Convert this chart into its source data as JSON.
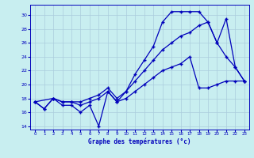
{
  "title": "Graphe des températures (°c)",
  "bg_color": "#c8eef0",
  "grid_color": "#aaccdd",
  "line_color": "#0000bb",
  "xlim": [
    -0.5,
    23.5
  ],
  "ylim": [
    13.5,
    31.5
  ],
  "yticks": [
    14,
    16,
    18,
    20,
    22,
    24,
    26,
    28,
    30
  ],
  "xticks": [
    0,
    1,
    2,
    3,
    4,
    5,
    6,
    7,
    8,
    9,
    10,
    11,
    12,
    13,
    14,
    15,
    16,
    17,
    18,
    19,
    20,
    21,
    22,
    23
  ],
  "series1_x": [
    0,
    1,
    2,
    3,
    4,
    5,
    6,
    7,
    8,
    9,
    10,
    11,
    12,
    13,
    14,
    15,
    16,
    17,
    18,
    19,
    20,
    21,
    22,
    23
  ],
  "series1_y": [
    17.5,
    16.5,
    18.0,
    17.0,
    17.0,
    16.0,
    17.0,
    14.0,
    19.0,
    17.5,
    19.0,
    21.5,
    23.5,
    25.5,
    29.0,
    30.5,
    30.5,
    30.5,
    30.5,
    29.0,
    26.0,
    24.0,
    22.5,
    20.5
  ],
  "series2_x": [
    0,
    2,
    3,
    4,
    5,
    6,
    7,
    8,
    9,
    10,
    11,
    12,
    13,
    14,
    15,
    16,
    17,
    18,
    19,
    20,
    21,
    22,
    23
  ],
  "series2_y": [
    17.5,
    18.0,
    17.5,
    17.5,
    17.5,
    18.0,
    18.5,
    19.5,
    18.0,
    19.0,
    20.5,
    22.0,
    23.5,
    25.0,
    26.0,
    27.0,
    27.5,
    28.5,
    29.0,
    26.0,
    29.5,
    22.5,
    20.5
  ],
  "series3_x": [
    0,
    1,
    2,
    3,
    4,
    5,
    6,
    7,
    8,
    9,
    10,
    11,
    12,
    13,
    14,
    15,
    16,
    17,
    18,
    19,
    20,
    21,
    22,
    23
  ],
  "series3_y": [
    17.5,
    16.5,
    18.0,
    17.5,
    17.5,
    17.0,
    17.5,
    18.0,
    19.0,
    17.5,
    18.0,
    19.0,
    20.0,
    21.0,
    22.0,
    22.5,
    23.0,
    24.0,
    19.5,
    19.5,
    20.0,
    20.5,
    20.5,
    20.5
  ]
}
